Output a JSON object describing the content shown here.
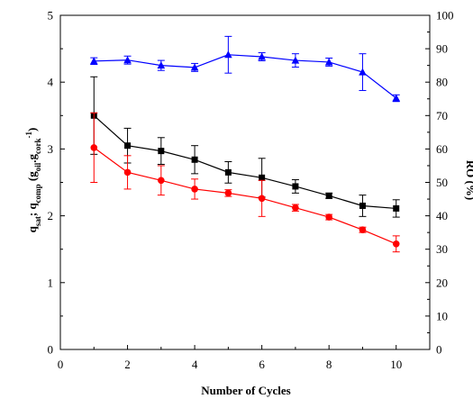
{
  "chart_data": {
    "type": "line",
    "title": "",
    "xlabel": "Number of Cycles",
    "ylabel_left": {
      "main": "q",
      "sub1": "sat",
      "sep": "; q",
      "sub2": "comp",
      "paren_open": " (g",
      "sub3": "oil",
      "dot": ".g",
      "sub4": "cork",
      "sup": "-1",
      "paren_close": ")"
    },
    "ylabel_right": "RO (%)",
    "xlim": [
      0,
      11
    ],
    "ylim_left": [
      0,
      5
    ],
    "ylim_right": [
      0,
      100
    ],
    "x_ticks": [
      "0",
      "2",
      "4",
      "6",
      "8",
      "10"
    ],
    "y_left_ticks": [
      "0",
      "1",
      "2",
      "3",
      "4",
      "5"
    ],
    "y_right_ticks": [
      "0",
      "10",
      "20",
      "30",
      "40",
      "50",
      "60",
      "70",
      "80",
      "90",
      "100"
    ],
    "legend": "none",
    "series": [
      {
        "axis": "left",
        "color": "#000000",
        "marker": "square",
        "x": [
          1,
          2,
          3,
          4,
          5,
          6,
          7,
          8,
          9,
          10
        ],
        "values": [
          3.5,
          3.05,
          2.97,
          2.84,
          2.65,
          2.57,
          2.44,
          2.3,
          2.15,
          2.11
        ],
        "error": [
          0.58,
          0.26,
          0.2,
          0.21,
          0.16,
          0.29,
          0.1,
          0.04,
          0.16,
          0.13
        ]
      },
      {
        "axis": "left",
        "color": "#ff0000",
        "marker": "circle",
        "x": [
          1,
          2,
          3,
          4,
          5,
          6,
          7,
          8,
          9,
          10
        ],
        "values": [
          3.02,
          2.65,
          2.53,
          2.4,
          2.34,
          2.26,
          2.12,
          1.98,
          1.79,
          1.58
        ],
        "error": [
          0.52,
          0.25,
          0.22,
          0.15,
          0.05,
          0.27,
          0.05,
          0.04,
          0.04,
          0.12
        ]
      },
      {
        "axis": "right",
        "color": "#0000ff",
        "marker": "triangle",
        "x": [
          1,
          2,
          3,
          4,
          5,
          6,
          7,
          8,
          9,
          10
        ],
        "values": [
          86.3,
          86.6,
          85.0,
          84.4,
          88.2,
          87.6,
          86.5,
          86.0,
          83.0,
          75.2
        ],
        "error": [
          1.0,
          1.2,
          1.5,
          1.2,
          5.5,
          1.2,
          2.0,
          1.2,
          5.5,
          1.0
        ]
      }
    ]
  }
}
